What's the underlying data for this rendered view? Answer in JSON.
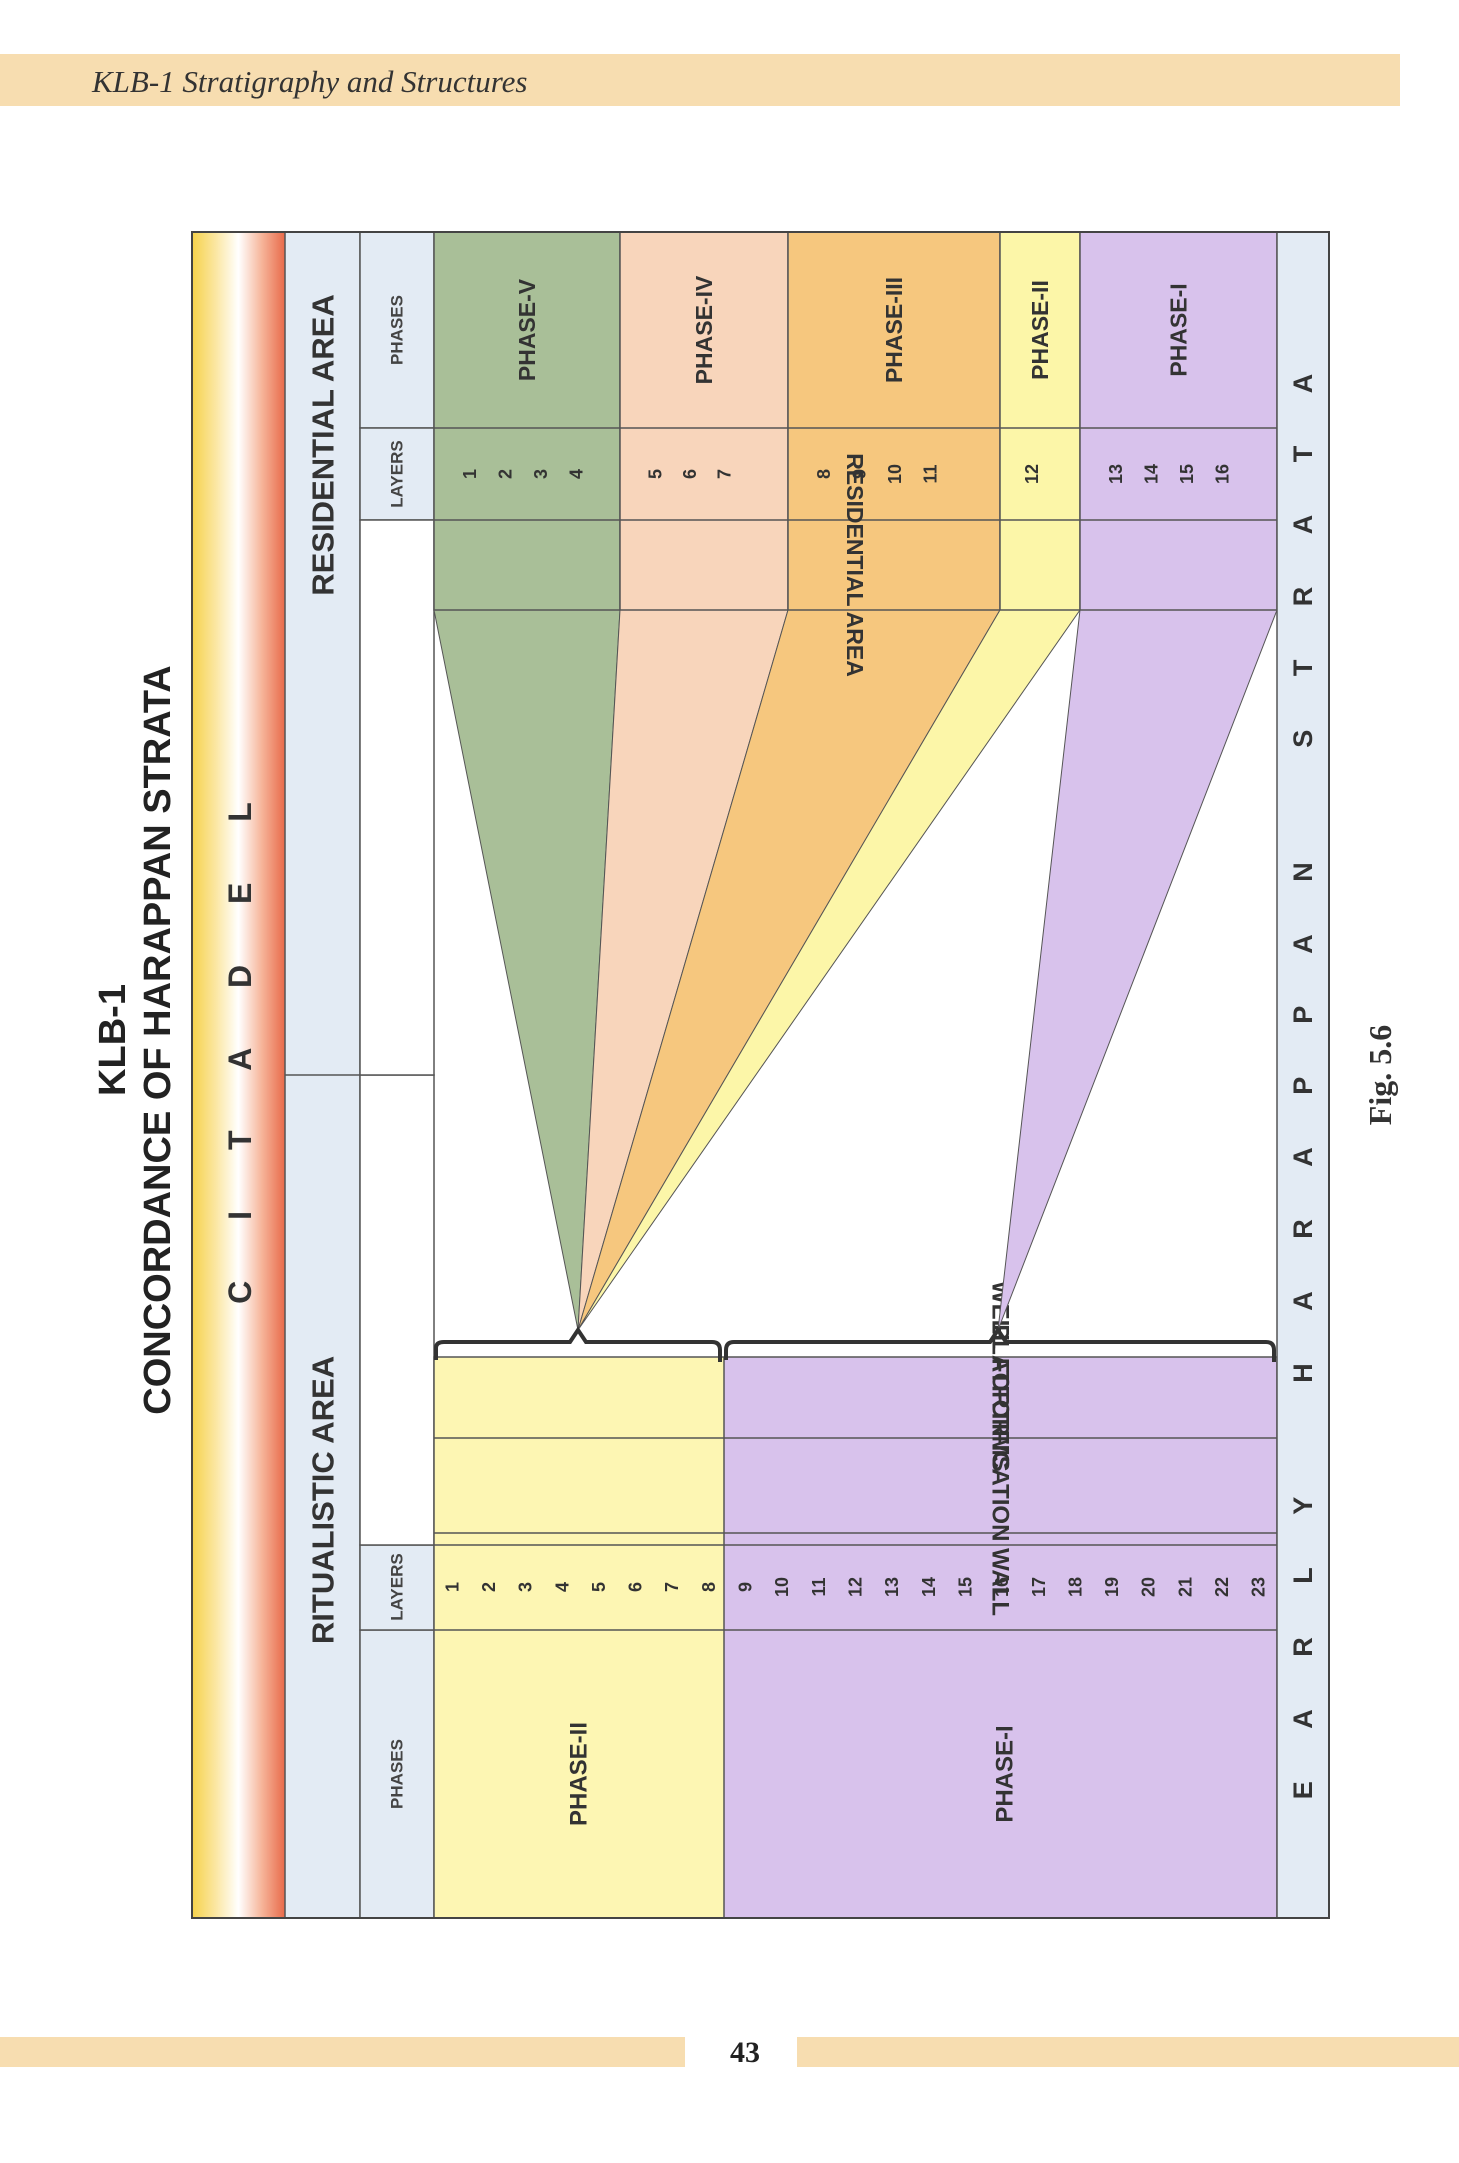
{
  "header": {
    "title": "KLB-1 Stratigraphy and Structures"
  },
  "figure": {
    "title_line1": "KLB-1",
    "title_line2": "CONCORDANCE OF HARAPPAN STRATA",
    "caption": "Fig. 5.6",
    "citadel_label": "C I T A D E L",
    "ritualistic_area": "RITUALISTIC AREA",
    "residential_area": "RESIDENTIAL AREA",
    "bottom_strip": "E A R L Y   H A R A P P A N   S T R A T A",
    "left": {
      "phases_header": "PHASES",
      "layers_header": "LAYERS",
      "phase2": "PHASE-II",
      "phase1": "PHASE-I",
      "layers": [
        "1",
        "2",
        "3",
        "4",
        "5",
        "6",
        "7",
        "8",
        "9",
        "10",
        "11",
        "12",
        "13",
        "14",
        "15",
        "16",
        "17",
        "18",
        "19",
        "20",
        "21",
        "22",
        "23"
      ],
      "structures": [
        "FORTIFICATION WALL",
        "PLATFORMS",
        "WELL"
      ]
    },
    "right": {
      "phases_header": "PHASES",
      "layers_header": "LAYERS",
      "band_label": "RESIDENTIAL AREA",
      "phases": [
        {
          "name": "PHASE-V",
          "layers": [
            "1",
            "2",
            "3",
            "4"
          ],
          "color": "#a9bf98"
        },
        {
          "name": "PHASE-IV",
          "layers": [
            "5",
            "6",
            "7"
          ],
          "color": "#f8d5bb"
        },
        {
          "name": "PHASE-III",
          "layers": [
            "8",
            "9",
            "10",
            "11"
          ],
          "color": "#f6c77e"
        },
        {
          "name": "PHASE-II",
          "layers": [
            "12"
          ],
          "color": "#fcf6a8"
        },
        {
          "name": "PHASE-I",
          "layers": [
            "13",
            "14",
            "15",
            "16"
          ],
          "color": "#d8c2ec"
        }
      ]
    },
    "colors": {
      "left_phase2": "#fdf6b3",
      "left_phase1": "#d8c2ec",
      "header_cell": "#e3ebf4",
      "citadel_gradient_start": "#f6d24a",
      "citadel_gradient_end": "#e86a4a"
    }
  },
  "page_number": "43"
}
